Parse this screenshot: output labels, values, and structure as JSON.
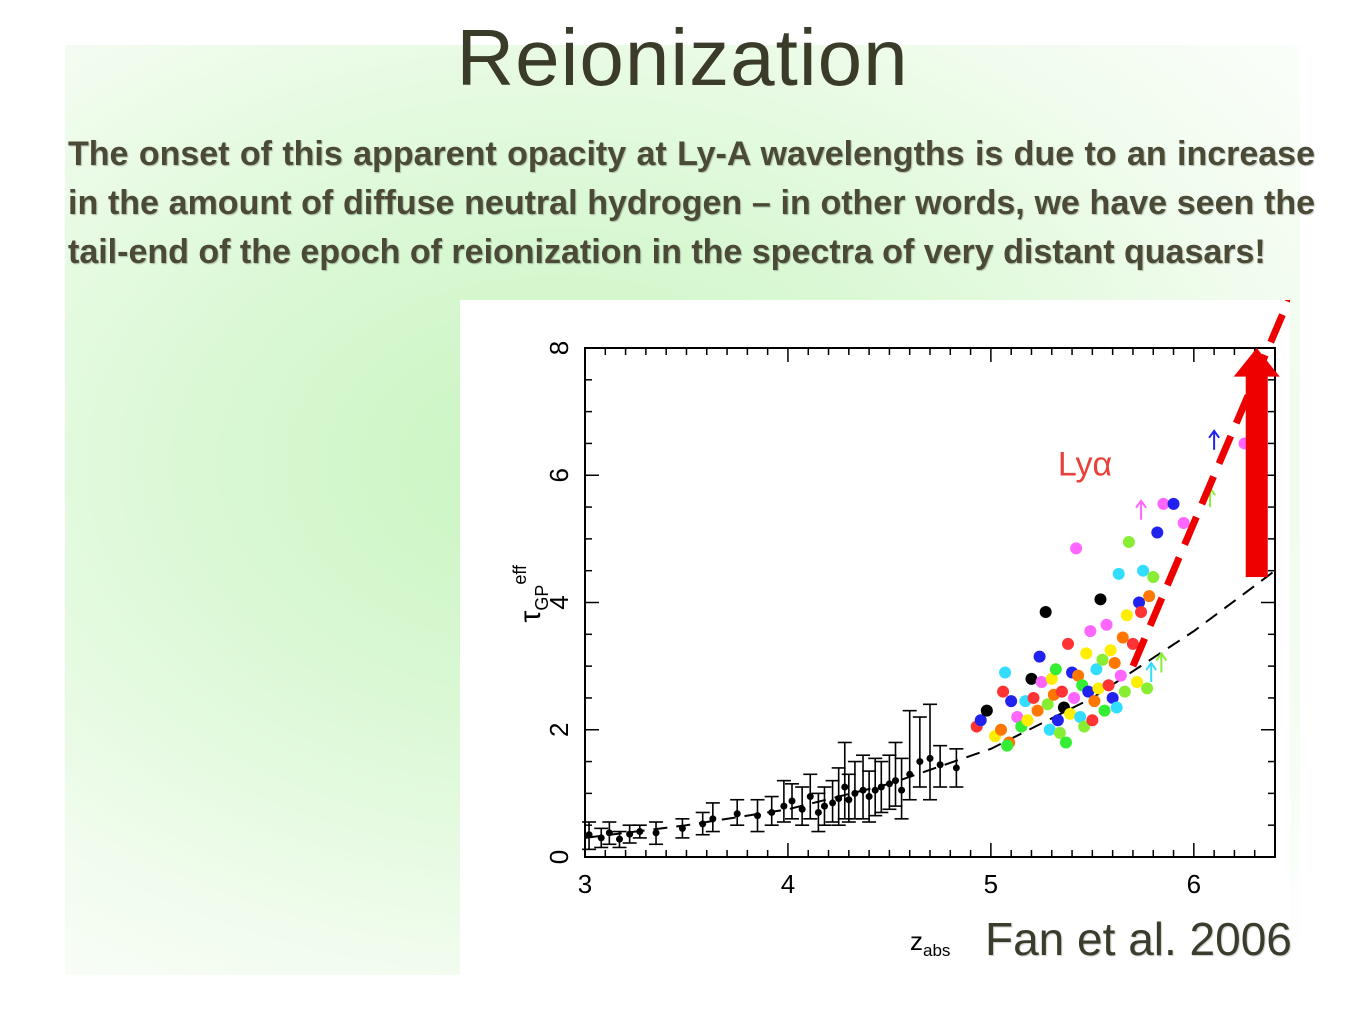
{
  "slide": {
    "title": "Reionization",
    "body": "The onset of this apparent opacity at Ly-A wavelengths is due to an increase in  the amount of diffuse neutral hydrogen – in other words, we have seen the tail-end of the epoch of reionization in the spectra of very distant quasars!",
    "citation": "Fan et al. 2006"
  },
  "colors": {
    "title": "#3b3b2a",
    "text": "#4a4a36",
    "annotation_red": "#ee0000",
    "lya_label": "#e8403a"
  },
  "chart_data": {
    "type": "scatter",
    "xlabel": "z_abs",
    "ylabel": "τ_GP^eff",
    "xlim": [
      3,
      6.4
    ],
    "ylim": [
      0,
      8
    ],
    "xticks": [
      "3",
      "4",
      "5",
      "6"
    ],
    "yticks": [
      "0",
      "2",
      "4",
      "6",
      "8"
    ],
    "annotation": "Lyα",
    "series": [
      {
        "kind": "binned_errorbars",
        "color": "#000000",
        "points": [
          {
            "x": 3.02,
            "y": 0.35,
            "lo": 0.12,
            "hi": 0.55
          },
          {
            "x": 3.08,
            "y": 0.3,
            "lo": 0.15,
            "hi": 0.45
          },
          {
            "x": 3.12,
            "y": 0.38,
            "lo": 0.2,
            "hi": 0.55
          },
          {
            "x": 3.17,
            "y": 0.28,
            "lo": 0.15,
            "hi": 0.4
          },
          {
            "x": 3.22,
            "y": 0.36,
            "lo": 0.22,
            "hi": 0.5
          },
          {
            "x": 3.27,
            "y": 0.4,
            "lo": 0.3,
            "hi": 0.5
          },
          {
            "x": 3.35,
            "y": 0.38,
            "lo": 0.2,
            "hi": 0.55
          },
          {
            "x": 3.48,
            "y": 0.45,
            "lo": 0.3,
            "hi": 0.6
          },
          {
            "x": 3.58,
            "y": 0.52,
            "lo": 0.35,
            "hi": 0.7
          },
          {
            "x": 3.63,
            "y": 0.6,
            "lo": 0.4,
            "hi": 0.85
          },
          {
            "x": 3.75,
            "y": 0.68,
            "lo": 0.5,
            "hi": 0.9
          },
          {
            "x": 3.85,
            "y": 0.65,
            "lo": 0.4,
            "hi": 0.9
          },
          {
            "x": 3.92,
            "y": 0.7,
            "lo": 0.5,
            "hi": 0.95
          },
          {
            "x": 3.98,
            "y": 0.8,
            "lo": 0.55,
            "hi": 1.2
          },
          {
            "x": 4.02,
            "y": 0.88,
            "lo": 0.6,
            "hi": 1.15
          },
          {
            "x": 4.07,
            "y": 0.75,
            "lo": 0.5,
            "hi": 1.1
          },
          {
            "x": 4.11,
            "y": 0.95,
            "lo": 0.6,
            "hi": 1.3
          },
          {
            "x": 4.15,
            "y": 0.7,
            "lo": 0.4,
            "hi": 1.0
          },
          {
            "x": 4.18,
            "y": 0.8,
            "lo": 0.5,
            "hi": 1.1
          },
          {
            "x": 4.22,
            "y": 0.85,
            "lo": 0.55,
            "hi": 1.2
          },
          {
            "x": 4.25,
            "y": 0.92,
            "lo": 0.5,
            "hi": 1.4
          },
          {
            "x": 4.28,
            "y": 1.1,
            "lo": 0.6,
            "hi": 1.8
          },
          {
            "x": 4.3,
            "y": 0.9,
            "lo": 0.55,
            "hi": 1.3
          },
          {
            "x": 4.33,
            "y": 1.0,
            "lo": 0.6,
            "hi": 1.5
          },
          {
            "x": 4.37,
            "y": 1.05,
            "lo": 0.6,
            "hi": 1.6
          },
          {
            "x": 4.4,
            "y": 0.95,
            "lo": 0.55,
            "hi": 1.35
          },
          {
            "x": 4.43,
            "y": 1.05,
            "lo": 0.65,
            "hi": 1.55
          },
          {
            "x": 4.46,
            "y": 1.1,
            "lo": 0.7,
            "hi": 1.5
          },
          {
            "x": 4.5,
            "y": 1.15,
            "lo": 0.75,
            "hi": 1.6
          },
          {
            "x": 4.53,
            "y": 1.2,
            "lo": 0.8,
            "hi": 1.8
          },
          {
            "x": 4.56,
            "y": 1.05,
            "lo": 0.6,
            "hi": 1.55
          },
          {
            "x": 4.6,
            "y": 1.3,
            "lo": 0.9,
            "hi": 2.3
          },
          {
            "x": 4.65,
            "y": 1.5,
            "lo": 1.1,
            "hi": 2.2
          },
          {
            "x": 4.7,
            "y": 1.55,
            "lo": 0.9,
            "hi": 2.4
          },
          {
            "x": 4.75,
            "y": 1.45,
            "lo": 1.1,
            "hi": 1.75
          },
          {
            "x": 4.83,
            "y": 1.4,
            "lo": 1.1,
            "hi": 1.7
          }
        ]
      },
      {
        "kind": "individual_quasars",
        "points": [
          {
            "x": 4.93,
            "y": 2.05,
            "c": "#ff3333"
          },
          {
            "x": 4.95,
            "y": 2.15,
            "c": "#2222ee"
          },
          {
            "x": 4.98,
            "y": 2.3,
            "c": "#000000"
          },
          {
            "x": 5.02,
            "y": 1.9,
            "c": "#ffee00"
          },
          {
            "x": 5.05,
            "y": 2.0,
            "c": "#ff7700"
          },
          {
            "x": 5.06,
            "y": 2.6,
            "c": "#ff3333"
          },
          {
            "x": 5.07,
            "y": 2.9,
            "c": "#33ddff"
          },
          {
            "x": 5.09,
            "y": 1.8,
            "c": "#ff7700"
          },
          {
            "x": 5.08,
            "y": 1.75,
            "c": "#33ee33"
          },
          {
            "x": 5.1,
            "y": 2.45,
            "c": "#2222ee"
          },
          {
            "x": 5.13,
            "y": 2.2,
            "c": "#ff66ff"
          },
          {
            "x": 5.15,
            "y": 2.05,
            "c": "#33ee33"
          },
          {
            "x": 5.17,
            "y": 2.45,
            "c": "#33ddff"
          },
          {
            "x": 5.18,
            "y": 2.15,
            "c": "#ffee00"
          },
          {
            "x": 5.2,
            "y": 2.8,
            "c": "#000000"
          },
          {
            "x": 5.21,
            "y": 2.5,
            "c": "#ff3333"
          },
          {
            "x": 5.23,
            "y": 2.3,
            "c": "#ff7700"
          },
          {
            "x": 5.24,
            "y": 3.15,
            "c": "#2222ee"
          },
          {
            "x": 5.25,
            "y": 2.75,
            "c": "#ff66ff"
          },
          {
            "x": 5.27,
            "y": 3.85,
            "c": "#000000"
          },
          {
            "x": 5.28,
            "y": 2.4,
            "c": "#88ee33"
          },
          {
            "x": 5.29,
            "y": 2.0,
            "c": "#33ddff"
          },
          {
            "x": 5.3,
            "y": 2.8,
            "c": "#ffee00"
          },
          {
            "x": 5.31,
            "y": 2.55,
            "c": "#ff7700"
          },
          {
            "x": 5.32,
            "y": 2.95,
            "c": "#33ee33"
          },
          {
            "x": 5.33,
            "y": 2.15,
            "c": "#2222ee"
          },
          {
            "x": 5.34,
            "y": 1.95,
            "c": "#88ee33"
          },
          {
            "x": 5.35,
            "y": 2.6,
            "c": "#ff3333"
          },
          {
            "x": 5.36,
            "y": 2.35,
            "c": "#000000"
          },
          {
            "x": 5.37,
            "y": 1.8,
            "c": "#33ee33"
          },
          {
            "x": 5.38,
            "y": 3.35,
            "c": "#ff3333"
          },
          {
            "x": 5.39,
            "y": 2.25,
            "c": "#ffee00"
          },
          {
            "x": 5.4,
            "y": 2.9,
            "c": "#2222ee"
          },
          {
            "x": 5.41,
            "y": 2.5,
            "c": "#ff66ff"
          },
          {
            "x": 5.42,
            "y": 4.85,
            "c": "#ff66ff"
          },
          {
            "x": 5.43,
            "y": 2.85,
            "c": "#ff7700"
          },
          {
            "x": 5.44,
            "y": 2.2,
            "c": "#33ddff"
          },
          {
            "x": 5.45,
            "y": 2.7,
            "c": "#33ee33"
          },
          {
            "x": 5.46,
            "y": 2.05,
            "c": "#88ee33"
          },
          {
            "x": 5.47,
            "y": 3.2,
            "c": "#ffee00"
          },
          {
            "x": 5.48,
            "y": 2.6,
            "c": "#2222ee"
          },
          {
            "x": 5.49,
            "y": 3.55,
            "c": "#ff66ff"
          },
          {
            "x": 5.5,
            "y": 2.15,
            "c": "#ff3333"
          },
          {
            "x": 5.51,
            "y": 2.45,
            "c": "#ff7700"
          },
          {
            "x": 5.52,
            "y": 2.95,
            "c": "#33ddff"
          },
          {
            "x": 5.53,
            "y": 2.65,
            "c": "#ffee00"
          },
          {
            "x": 5.54,
            "y": 4.05,
            "c": "#000000"
          },
          {
            "x": 5.55,
            "y": 3.1,
            "c": "#88ee33"
          },
          {
            "x": 5.56,
            "y": 2.3,
            "c": "#33ee33"
          },
          {
            "x": 5.57,
            "y": 3.65,
            "c": "#ff66ff"
          },
          {
            "x": 5.58,
            "y": 2.7,
            "c": "#ff3333"
          },
          {
            "x": 5.59,
            "y": 3.25,
            "c": "#ffee00"
          },
          {
            "x": 5.6,
            "y": 2.5,
            "c": "#2222ee"
          },
          {
            "x": 5.61,
            "y": 3.05,
            "c": "#ff7700"
          },
          {
            "x": 5.62,
            "y": 2.35,
            "c": "#33ddff"
          },
          {
            "x": 5.63,
            "y": 4.45,
            "c": "#33ddff"
          },
          {
            "x": 5.64,
            "y": 2.85,
            "c": "#ff66ff"
          },
          {
            "x": 5.65,
            "y": 3.45,
            "c": "#ff7700"
          },
          {
            "x": 5.66,
            "y": 2.6,
            "c": "#88ee33"
          },
          {
            "x": 5.67,
            "y": 3.8,
            "c": "#ffee00"
          },
          {
            "x": 5.68,
            "y": 4.95,
            "c": "#88ee33"
          },
          {
            "x": 5.7,
            "y": 3.35,
            "c": "#ff3333"
          },
          {
            "x": 5.72,
            "y": 2.75,
            "c": "#ffee00"
          },
          {
            "x": 5.73,
            "y": 4.0,
            "c": "#2222ee"
          },
          {
            "x": 5.74,
            "y": 3.85,
            "c": "#ff3333"
          },
          {
            "x": 5.75,
            "y": 4.5,
            "c": "#33ddff"
          },
          {
            "x": 5.77,
            "y": 2.65,
            "c": "#88ee33"
          },
          {
            "x": 5.78,
            "y": 4.1,
            "c": "#ff7700"
          },
          {
            "x": 5.8,
            "y": 4.4,
            "c": "#88ee33"
          },
          {
            "x": 5.82,
            "y": 5.1,
            "c": "#2222ee"
          },
          {
            "x": 5.85,
            "y": 5.55,
            "c": "#ff66ff"
          },
          {
            "x": 5.9,
            "y": 5.55,
            "c": "#2222ee"
          },
          {
            "x": 5.95,
            "y": 5.25,
            "c": "#ff66ff"
          },
          {
            "x": 6.25,
            "y": 6.5,
            "c": "#ff66ff"
          }
        ]
      },
      {
        "kind": "lower_limits",
        "points": [
          {
            "x": 5.74,
            "y": 5.3,
            "c": "#ff66ff"
          },
          {
            "x": 6.08,
            "y": 5.5,
            "c": "#88ee33"
          },
          {
            "x": 6.1,
            "y": 6.4,
            "c": "#2222ee"
          },
          {
            "x": 5.79,
            "y": 2.75,
            "c": "#33ddff"
          },
          {
            "x": 5.84,
            "y": 2.9,
            "c": "#88ee33"
          }
        ]
      },
      {
        "kind": "fit_curve",
        "style": "dashed",
        "color": "#000000",
        "points": [
          [
            3.0,
            0.3
          ],
          [
            3.5,
            0.5
          ],
          [
            4.0,
            0.75
          ],
          [
            4.5,
            1.15
          ],
          [
            5.0,
            1.7
          ],
          [
            5.5,
            2.5
          ],
          [
            6.0,
            3.55
          ],
          [
            6.4,
            4.5
          ]
        ]
      },
      {
        "kind": "steep_trend",
        "style": "dashed",
        "color": "#ee0000",
        "points": [
          [
            5.7,
            3.0
          ],
          [
            6.5,
            9.0
          ]
        ]
      }
    ]
  }
}
